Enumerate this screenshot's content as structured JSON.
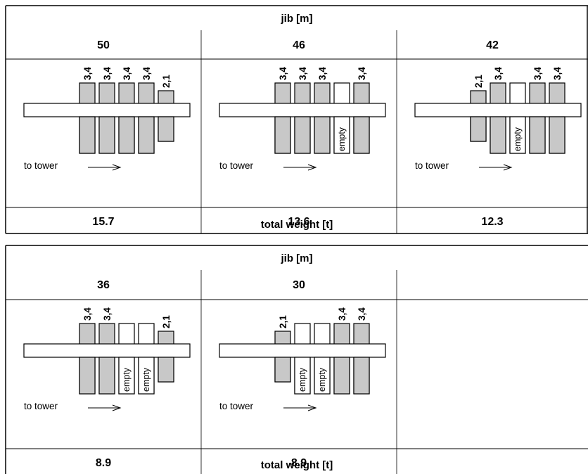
{
  "colors": {
    "block_filled": "#c8c8c8",
    "block_empty": "#ffffff",
    "line": "#000000"
  },
  "tables": [
    {
      "header": "jib  [m]",
      "footer": "total weight  [t]",
      "columns": [
        {
          "jib": "50",
          "weight": "15.7",
          "tower_label": "to tower",
          "blocks": [
            {
              "label": "3,4",
              "type": "full"
            },
            {
              "label": "3,4",
              "type": "full"
            },
            {
              "label": "3,4",
              "type": "full"
            },
            {
              "label": "3,4",
              "type": "full"
            },
            {
              "label": "2,1",
              "type": "small"
            }
          ]
        },
        {
          "jib": "46",
          "weight": "13.6",
          "tower_label": "to tower",
          "blocks": [
            {
              "label": "3,4",
              "type": "full"
            },
            {
              "label": "3,4",
              "type": "full"
            },
            {
              "label": "3,4",
              "type": "full"
            },
            {
              "label": "empty",
              "type": "empty"
            },
            {
              "label": "3,4",
              "type": "full"
            }
          ]
        },
        {
          "jib": "42",
          "weight": "12.3",
          "tower_label": "to tower",
          "blocks": [
            {
              "label": "2,1",
              "type": "small"
            },
            {
              "label": "3,4",
              "type": "full"
            },
            {
              "label": "empty",
              "type": "empty"
            },
            {
              "label": "3,4",
              "type": "full"
            },
            {
              "label": "3,4",
              "type": "full"
            }
          ]
        }
      ]
    },
    {
      "header": "jib  [m]",
      "footer": "total weight  [t]",
      "columns": [
        {
          "jib": "36",
          "weight": "8.9",
          "tower_label": "to tower",
          "blocks": [
            {
              "label": "3,4",
              "type": "full"
            },
            {
              "label": "3,4",
              "type": "full"
            },
            {
              "label": "empty",
              "type": "empty"
            },
            {
              "label": "empty",
              "type": "empty"
            },
            {
              "label": "2,1",
              "type": "small"
            }
          ]
        },
        {
          "jib": "30",
          "weight": "8.9",
          "tower_label": "to tower",
          "blocks": [
            {
              "label": "2,1",
              "type": "small"
            },
            {
              "label": "empty",
              "type": "empty"
            },
            {
              "label": "empty",
              "type": "empty"
            },
            {
              "label": "3,4",
              "type": "full"
            },
            {
              "label": "3,4",
              "type": "full"
            }
          ]
        }
      ]
    }
  ]
}
